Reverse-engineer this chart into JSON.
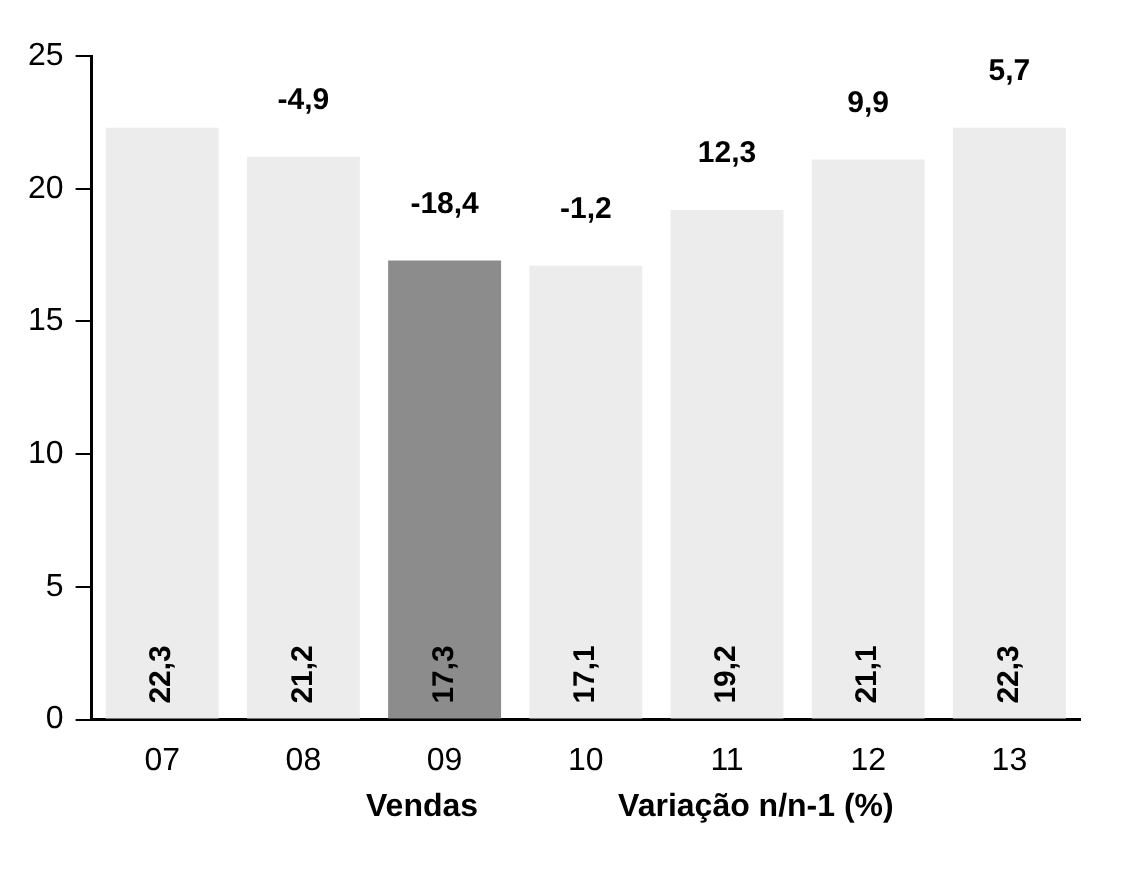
{
  "chart_data": {
    "type": "bar",
    "categories": [
      "07",
      "08",
      "09",
      "10",
      "11",
      "12",
      "13"
    ],
    "values": [
      22.3,
      21.2,
      17.3,
      17.1,
      19.2,
      21.1,
      22.3
    ],
    "value_labels": [
      "22,3",
      "21,2",
      "17,3",
      "17,1",
      "19,2",
      "21,1",
      "22,3"
    ],
    "colors": [
      "#ececec",
      "#ececec",
      "#8c8c8c",
      "#ececec",
      "#ececec",
      "#ececec",
      "#ececec"
    ],
    "ylim": [
      0,
      25
    ],
    "yticks": [
      0,
      5,
      10,
      15,
      20,
      25
    ],
    "grid": false,
    "legend": false,
    "annotations": [
      {
        "text": "-4,9",
        "x": "08",
        "y": 21.2
      },
      {
        "text": "-18,4",
        "x": "09",
        "y": 17.3
      },
      {
        "text": "-1,2",
        "x": "10",
        "y": 17.1
      },
      {
        "text": "12,3",
        "x": "11",
        "y": 19.2
      },
      {
        "text": "9,9",
        "x": "12",
        "y": 21.1
      },
      {
        "text": "5,7",
        "x": "13",
        "y": 22.3
      },
      "Vendas",
      "Variação n/n-1 (%)"
    ]
  }
}
